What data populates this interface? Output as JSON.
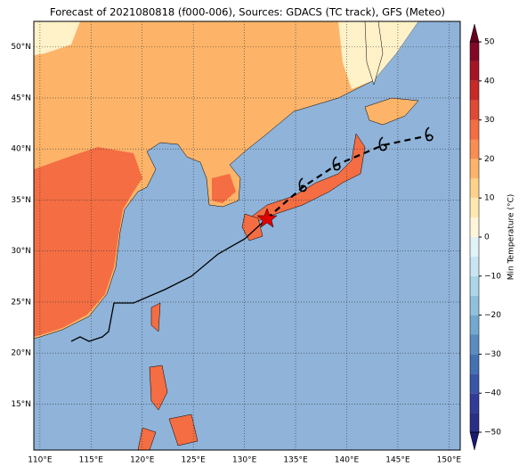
{
  "title": "Forecast of 2021080818 (f000-006), Sources: GDACS (TC track), GFS (Meteo)",
  "map": {
    "lon_lim": [
      109.4,
      151.1
    ],
    "lat_lim": [
      10.5,
      52.5
    ],
    "lon_ticks": [
      {
        "value": 110,
        "label": "110°E"
      },
      {
        "value": 115,
        "label": "115°E"
      },
      {
        "value": 120,
        "label": "120°E"
      },
      {
        "value": 125,
        "label": "125°E"
      },
      {
        "value": 130,
        "label": "130°E"
      },
      {
        "value": 135,
        "label": "135°E"
      },
      {
        "value": 140,
        "label": "140°E"
      },
      {
        "value": 145,
        "label": "145°E"
      },
      {
        "value": 150,
        "label": "150°E"
      }
    ],
    "lat_ticks": [
      {
        "value": 15,
        "label": "15°N"
      },
      {
        "value": 20,
        "label": "20°N"
      },
      {
        "value": 25,
        "label": "25°N"
      },
      {
        "value": 30,
        "label": "30°N"
      },
      {
        "value": 35,
        "label": "35°N"
      },
      {
        "value": 40,
        "label": "40°N"
      },
      {
        "value": 45,
        "label": "45°N"
      },
      {
        "value": 50,
        "label": "50°N"
      }
    ],
    "grid": true
  },
  "colorbar": {
    "label": "Min Temperature (°C)",
    "lim": [
      -50,
      50
    ],
    "ticks": [
      {
        "value": -50,
        "label": "−50"
      },
      {
        "value": -40,
        "label": "−40"
      },
      {
        "value": -30,
        "label": "−30"
      },
      {
        "value": -20,
        "label": "−20"
      },
      {
        "value": -10,
        "label": "−10"
      },
      0,
      10,
      20,
      30,
      40,
      50
    ],
    "colors": [
      "#2a2f86",
      "#313c98",
      "#3a55a6",
      "#4471b2",
      "#5a8cc0",
      "#74a9cf",
      "#90c0dc",
      "#abd6e8",
      "#c8e6f1",
      "#e2f3f8",
      "#fff6d9",
      "#ffe9b0",
      "#fed28a",
      "#fdb469",
      "#f98e52",
      "#f46d43",
      "#de4a33",
      "#c72a28",
      "#a51526",
      "#820825"
    ],
    "under_color": "#1a1a6e",
    "over_color": "#67001f"
  }
}
